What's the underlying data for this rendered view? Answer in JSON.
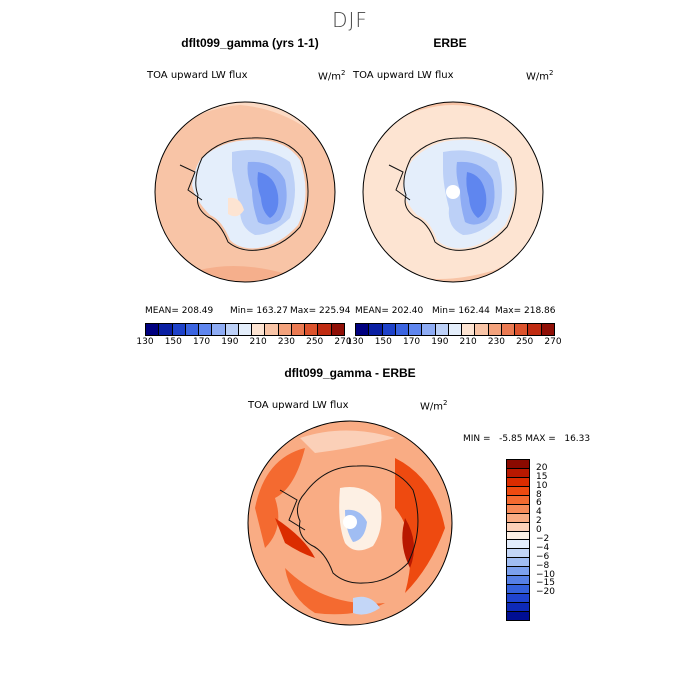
{
  "figure": {
    "title": "DJF"
  },
  "chart_data": [
    {
      "type": "heatmap",
      "name": "model",
      "title": "dflt099_gamma (yrs 1-1)",
      "variable": "TOA upward LW flux",
      "units": "W/m",
      "units_exp": "2",
      "stats": {
        "mean_label": "MEAN= 208.49",
        "min_label": "Min= 163.27",
        "max_label": "Max= 225.94",
        "mean": 208.49,
        "min": 163.27,
        "max": 225.94
      },
      "contour_levels": [
        130,
        140,
        150,
        160,
        170,
        180,
        190,
        200,
        210,
        220,
        230,
        240,
        250,
        260,
        270
      ],
      "colorbar_labels": [
        "130",
        "150",
        "170",
        "190",
        "210",
        "230",
        "250",
        "270"
      ],
      "colors": [
        "#00007f",
        "#0a1fa3",
        "#1e42c9",
        "#3b64e0",
        "#5f86ef",
        "#8eacf4",
        "#bcd0f7",
        "#e4eefb",
        "#fde4d2",
        "#f8c4a6",
        "#f3a27c",
        "#ea7a52",
        "#dc532d",
        "#c02c12",
        "#8f0f06"
      ]
    },
    {
      "type": "heatmap",
      "name": "obs",
      "title": "ERBE",
      "variable": "TOA upward LW flux",
      "units": "W/m",
      "units_exp": "2",
      "stats": {
        "mean_label": "MEAN= 202.40",
        "min_label": "Min= 162.44",
        "max_label": "Max= 218.86",
        "mean": 202.4,
        "min": 162.44,
        "max": 218.86
      },
      "colorbar_labels": [
        "130",
        "150",
        "170",
        "190",
        "210",
        "230",
        "250",
        "270"
      ]
    },
    {
      "type": "heatmap",
      "name": "difference",
      "title": "dflt099_gamma - ERBE",
      "variable": "TOA upward LW flux",
      "units": "W/m",
      "units_exp": "2",
      "stats": {
        "min_max_label": "MIN =   -5.85 MAX =   16.33",
        "min": -5.85,
        "max": 16.33
      },
      "contour_levels": [
        -20,
        -15,
        -10,
        -8,
        -6,
        -4,
        -2,
        0,
        2,
        4,
        6,
        8,
        10,
        15,
        20
      ],
      "colorbar_labels": [
        "20",
        "15",
        "10",
        "8",
        "6",
        "4",
        "2",
        "0",
        "−2",
        "−4",
        "−6",
        "−8",
        "−10",
        "−15",
        "−20"
      ],
      "colors_top_to_bottom": [
        "#8b0a00",
        "#b81800",
        "#db2c00",
        "#ee4a10",
        "#f46a30",
        "#f78a58",
        "#f9ac84",
        "#fbd0b8",
        "#fdf0e4",
        "#e2ecfb",
        "#c3d6f7",
        "#a0bdf3",
        "#7ba0ee",
        "#5680e6",
        "#3461dc",
        "#1f44d0",
        "#0e2ab8",
        "#000e93"
      ]
    }
  ]
}
